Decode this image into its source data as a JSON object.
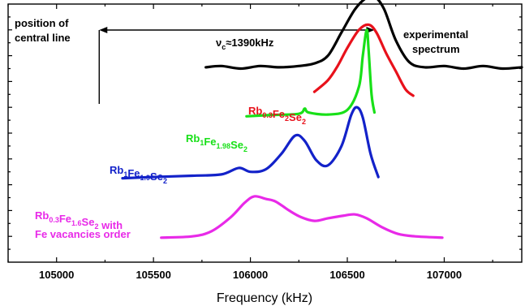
{
  "chart_data": {
    "type": "line",
    "xlabel": "Frequency (kHz)",
    "ylabel": "",
    "xlim": [
      104750,
      107400
    ],
    "ylim": [
      0,
      10
    ],
    "x_ticks": [
      105000,
      105500,
      106000,
      106500,
      107000
    ],
    "y_ticks_shown_labels": false,
    "grid": false,
    "central_line_x": 105220,
    "annotations": {
      "central_line": [
        "position of",
        "central line"
      ],
      "nu_c": {
        "main": "ν",
        "sub": "c",
        "rest": "≈1390kHz"
      },
      "experimental": [
        "experimental",
        "spectrum"
      ],
      "label_rb03fe2se2": [
        {
          "t": "Rb"
        },
        {
          "t": "0.3",
          "sub": true
        },
        {
          "t": "Fe"
        },
        {
          "t": "2",
          "sub": true
        },
        {
          "t": "Se"
        },
        {
          "t": "2",
          "sub": true
        }
      ],
      "label_rb1fe198se2": [
        {
          "t": "Rb"
        },
        {
          "t": "1",
          "sub": true
        },
        {
          "t": "Fe"
        },
        {
          "t": "1.98",
          "sub": true
        },
        {
          "t": "Se"
        },
        {
          "t": "2",
          "sub": true
        }
      ],
      "label_rb1fe19se2": [
        {
          "t": "Rb"
        },
        {
          "t": "1",
          "sub": true
        },
        {
          "t": "Fe"
        },
        {
          "t": "1.9",
          "sub": true
        },
        {
          "t": "Se"
        },
        {
          "t": "2",
          "sub": true
        }
      ],
      "label_rb03fe16se2": [
        {
          "t": "Rb"
        },
        {
          "t": "0.3",
          "sub": true
        },
        {
          "t": "Fe"
        },
        {
          "t": "1.6",
          "sub": true
        },
        {
          "t": "Se"
        },
        {
          "t": "2",
          "sub": true
        },
        {
          "t": " with"
        }
      ],
      "label_vacancies": "Fe vacancies order"
    },
    "series": [
      {
        "name": "experimental spectrum",
        "color": "#000000",
        "points": [
          [
            105770,
            7.55
          ],
          [
            105850,
            7.6
          ],
          [
            105950,
            7.5
          ],
          [
            106050,
            7.6
          ],
          [
            106150,
            7.55
          ],
          [
            106250,
            7.6
          ],
          [
            106330,
            7.7
          ],
          [
            106400,
            8.0
          ],
          [
            106470,
            8.9
          ],
          [
            106540,
            9.8
          ],
          [
            106600,
            10.25
          ],
          [
            106640,
            10.3
          ],
          [
            106690,
            9.8
          ],
          [
            106750,
            8.6
          ],
          [
            106820,
            7.75
          ],
          [
            106900,
            7.55
          ],
          [
            107000,
            7.6
          ],
          [
            107100,
            7.5
          ],
          [
            107200,
            7.6
          ],
          [
            107300,
            7.5
          ],
          [
            107400,
            7.55
          ]
        ]
      },
      {
        "name": "Rb0.3Fe2Se2",
        "color": "#e8111b",
        "points": [
          [
            106330,
            6.6
          ],
          [
            106400,
            7.05
          ],
          [
            106450,
            7.6
          ],
          [
            106500,
            8.3
          ],
          [
            106560,
            9.0
          ],
          [
            106610,
            9.2
          ],
          [
            106650,
            8.9
          ],
          [
            106700,
            8.1
          ],
          [
            106750,
            7.4
          ],
          [
            106800,
            6.7
          ],
          [
            106840,
            6.45
          ]
        ]
      },
      {
        "name": "Rb1Fe1.98Se2",
        "color": "#18e018",
        "points": [
          [
            105980,
            5.65
          ],
          [
            106100,
            5.7
          ],
          [
            106250,
            5.75
          ],
          [
            106280,
            5.95
          ],
          [
            106300,
            5.8
          ],
          [
            106400,
            5.72
          ],
          [
            106500,
            5.9
          ],
          [
            106560,
            6.8
          ],
          [
            106580,
            8.0
          ],
          [
            106600,
            9.0
          ],
          [
            106610,
            8.2
          ],
          [
            106625,
            6.5
          ],
          [
            106640,
            5.8
          ]
        ]
      },
      {
        "name": "Rb1Fe1.9Se2",
        "color": "#1322c9",
        "points": [
          [
            105340,
            3.25
          ],
          [
            105500,
            3.3
          ],
          [
            105700,
            3.35
          ],
          [
            105850,
            3.4
          ],
          [
            105940,
            3.65
          ],
          [
            106000,
            3.5
          ],
          [
            106080,
            3.6
          ],
          [
            106160,
            4.2
          ],
          [
            106230,
            4.9
          ],
          [
            106280,
            4.7
          ],
          [
            106340,
            3.95
          ],
          [
            106400,
            3.75
          ],
          [
            106470,
            4.5
          ],
          [
            106520,
            5.7
          ],
          [
            106550,
            6.0
          ],
          [
            106580,
            5.6
          ],
          [
            106620,
            4.2
          ],
          [
            106660,
            3.3
          ]
        ]
      },
      {
        "name": "Rb0.3Fe1.6Se2 with Fe vacancies order",
        "color": "#e82ae8",
        "points": [
          [
            105540,
            0.95
          ],
          [
            105700,
            1.0
          ],
          [
            105800,
            1.2
          ],
          [
            105900,
            1.75
          ],
          [
            105970,
            2.3
          ],
          [
            106020,
            2.55
          ],
          [
            106080,
            2.45
          ],
          [
            106130,
            2.35
          ],
          [
            106200,
            2.0
          ],
          [
            106260,
            1.75
          ],
          [
            106330,
            1.6
          ],
          [
            106400,
            1.7
          ],
          [
            106480,
            1.8
          ],
          [
            106540,
            1.85
          ],
          [
            106600,
            1.7
          ],
          [
            106680,
            1.35
          ],
          [
            106760,
            1.1
          ],
          [
            106850,
            1.0
          ],
          [
            106990,
            0.95
          ]
        ]
      }
    ]
  }
}
